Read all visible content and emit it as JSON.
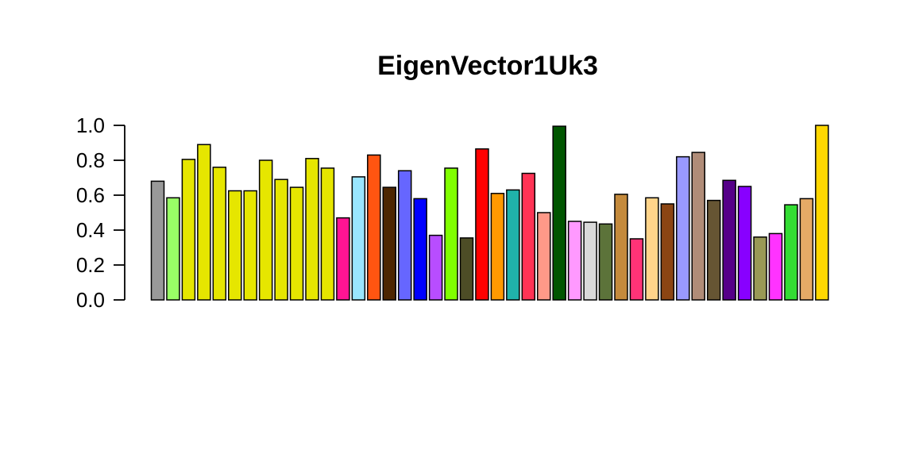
{
  "chart_data": {
    "type": "bar",
    "title": "EigenVector1Uk3",
    "xlabel": "",
    "ylabel": "",
    "ylim": [
      0,
      1.0
    ],
    "yticks": [
      "0.0",
      "0.2",
      "0.4",
      "0.6",
      "0.8",
      "1.0"
    ],
    "grid": false,
    "legend": "none",
    "values": [
      0.68,
      0.585,
      0.805,
      0.89,
      0.76,
      0.625,
      0.625,
      0.8,
      0.69,
      0.645,
      0.81,
      0.755,
      0.47,
      0.705,
      0.83,
      0.645,
      0.74,
      0.58,
      0.37,
      0.755,
      0.355,
      0.865,
      0.61,
      0.63,
      0.725,
      0.5,
      0.995,
      0.45,
      0.445,
      0.435,
      0.605,
      0.35,
      0.585,
      0.55,
      0.82,
      0.845,
      0.57,
      0.685,
      0.65,
      0.36,
      0.38,
      0.545,
      0.58,
      1.0
    ],
    "colors": [
      "#999999",
      "#99ff66",
      "#e6e600",
      "#e6e600",
      "#e6e600",
      "#e6e600",
      "#e6e600",
      "#e6e600",
      "#e6e600",
      "#e6e600",
      "#e6e600",
      "#e6e600",
      "#ff1493",
      "#99e6ff",
      "#ff5511",
      "#4d2600",
      "#6666ff",
      "#0000ff",
      "#b84dff",
      "#80ff00",
      "#4d4d26",
      "#ff0000",
      "#ff9900",
      "#20b2aa",
      "#ff3355",
      "#ff9988",
      "#005500",
      "#ff99ff",
      "#d9d9d9",
      "#5c733a",
      "#c48a3c",
      "#ff3377",
      "#ffd48a",
      "#8b4513",
      "#9999ff",
      "#b08c78",
      "#665533",
      "#550088",
      "#8800ff",
      "#999955",
      "#ff33ff",
      "#33dd33",
      "#e6aa66",
      "#ffd700"
    ]
  }
}
